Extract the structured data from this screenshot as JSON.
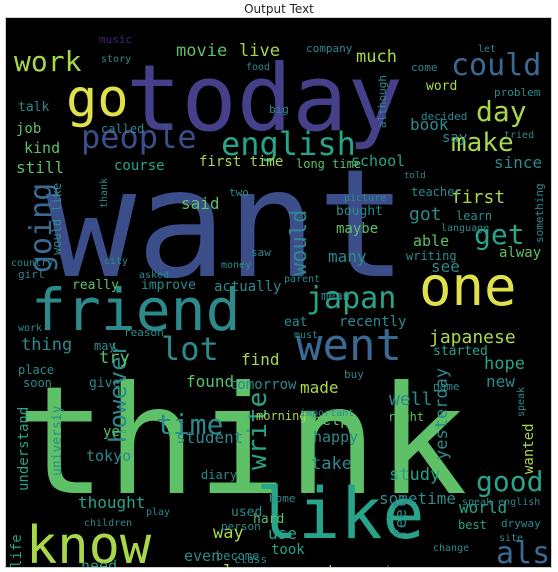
{
  "title": "Output Text",
  "background": "#000000",
  "palette": {
    "navy": "#3b4e8a",
    "indigo": "#46408a",
    "blue": "#3a6a93",
    "teal": "#2d8a8c",
    "sea": "#27a48a",
    "green": "#5ec067",
    "lime": "#a8d84a",
    "yellow": "#dfe14a",
    "purple": "#44207a"
  },
  "words": [
    {
      "text": "want",
      "color": "navy"
    },
    {
      "text": "think",
      "color": "green"
    },
    {
      "text": "today",
      "color": "indigo"
    },
    {
      "text": "friend",
      "color": "teal"
    },
    {
      "text": "know",
      "color": "lime"
    },
    {
      "text": "like",
      "color": "sea"
    },
    {
      "text": "one",
      "color": "yellow"
    },
    {
      "text": "went",
      "color": "blue"
    },
    {
      "text": "go",
      "color": "yellow"
    },
    {
      "text": "people",
      "color": "navy"
    },
    {
      "text": "english",
      "color": "sea"
    },
    {
      "text": "could",
      "color": "blue"
    },
    {
      "text": "day",
      "color": "lime"
    },
    {
      "text": "make",
      "color": "lime"
    },
    {
      "text": "work",
      "color": "lime"
    },
    {
      "text": "going",
      "color": "blue"
    },
    {
      "text": "japan",
      "color": "sea"
    },
    {
      "text": "lot",
      "color": "teal"
    },
    {
      "text": "however",
      "color": "teal"
    },
    {
      "text": "would",
      "color": "teal"
    },
    {
      "text": "get",
      "color": "sea"
    },
    {
      "text": "time",
      "color": "teal"
    },
    {
      "text": "write",
      "color": "sea"
    },
    {
      "text": "good",
      "color": "sea"
    },
    {
      "text": "also",
      "color": "blue"
    },
    {
      "text": "japanese",
      "color": "lime"
    },
    {
      "text": "movie",
      "color": "green"
    },
    {
      "text": "live",
      "color": "lime"
    },
    {
      "text": "much",
      "color": "lime"
    },
    {
      "text": "school",
      "color": "sea"
    },
    {
      "text": "first time",
      "color": "lime"
    },
    {
      "text": "long time",
      "color": "green"
    },
    {
      "text": "still",
      "color": "green"
    },
    {
      "text": "kind",
      "color": "green"
    },
    {
      "text": "job",
      "color": "green"
    },
    {
      "text": "talk",
      "color": "teal"
    },
    {
      "text": "book",
      "color": "teal"
    },
    {
      "text": "say",
      "color": "teal"
    },
    {
      "text": "word",
      "color": "lime"
    },
    {
      "text": "since",
      "color": "teal"
    },
    {
      "text": "said",
      "color": "green"
    },
    {
      "text": "first",
      "color": "lime"
    },
    {
      "text": "got",
      "color": "teal"
    },
    {
      "text": "able",
      "color": "green"
    },
    {
      "text": "alway",
      "color": "green"
    },
    {
      "text": "maybe",
      "color": "green"
    },
    {
      "text": "many",
      "color": "teal"
    },
    {
      "text": "see",
      "color": "teal"
    },
    {
      "text": "really",
      "color": "green"
    },
    {
      "text": "improve",
      "color": "teal"
    },
    {
      "text": "actually",
      "color": "teal"
    },
    {
      "text": "eat",
      "color": "teal"
    },
    {
      "text": "recently",
      "color": "teal"
    },
    {
      "text": "thing",
      "color": "teal"
    },
    {
      "text": "try",
      "color": "green"
    },
    {
      "text": "find",
      "color": "lime"
    },
    {
      "text": "found",
      "color": "green"
    },
    {
      "text": "tomorrow",
      "color": "teal"
    },
    {
      "text": "made",
      "color": "lime"
    },
    {
      "text": "well",
      "color": "teal"
    },
    {
      "text": "hope",
      "color": "sea"
    },
    {
      "text": "new",
      "color": "teal"
    },
    {
      "text": "started",
      "color": "sea"
    },
    {
      "text": "understand",
      "color": "sea"
    },
    {
      "text": "student",
      "color": "teal"
    },
    {
      "text": "year",
      "color": "green"
    },
    {
      "text": "tokyo",
      "color": "teal"
    },
    {
      "text": "happy",
      "color": "teal"
    },
    {
      "text": "help",
      "color": "green"
    },
    {
      "text": "take",
      "color": "teal"
    },
    {
      "text": "study",
      "color": "sea"
    },
    {
      "text": "yesterday",
      "color": "teal"
    },
    {
      "text": "wanted",
      "color": "lime"
    },
    {
      "text": "thought",
      "color": "sea"
    },
    {
      "text": "sometime",
      "color": "teal"
    },
    {
      "text": "way",
      "color": "lime"
    },
    {
      "text": "use",
      "color": "sea"
    },
    {
      "text": "feel",
      "color": "teal"
    },
    {
      "text": "world",
      "color": "sea"
    },
    {
      "text": "need",
      "color": "sea"
    },
    {
      "text": "even",
      "color": "teal"
    },
    {
      "text": "love",
      "color": "lime"
    },
    {
      "text": "read",
      "color": "lime"
    },
    {
      "text": "took",
      "color": "sea"
    },
    {
      "text": "family",
      "color": "sea"
    },
    {
      "text": "house",
      "color": "teal"
    },
    {
      "text": "difficult",
      "color": "lime"
    },
    {
      "text": "better",
      "color": "teal"
    },
    {
      "text": "watch",
      "color": "teal"
    },
    {
      "text": "become",
      "color": "teal"
    },
    {
      "text": "hard",
      "color": "green"
    },
    {
      "text": "used",
      "color": "teal"
    },
    {
      "text": "life",
      "color": "sea"
    },
    {
      "text": "universiy",
      "color": "teal"
    },
    {
      "text": "diary",
      "color": "teal"
    },
    {
      "text": "morning",
      "color": "lime"
    },
    {
      "text": "course",
      "color": "sea"
    },
    {
      "text": "bought",
      "color": "teal"
    },
    {
      "text": "would like",
      "color": "teal"
    },
    {
      "text": "teacher",
      "color": "teal"
    },
    {
      "text": "learn",
      "color": "teal"
    },
    {
      "text": "writing",
      "color": "teal"
    },
    {
      "text": "mean",
      "color": "teal"
    },
    {
      "text": "music",
      "color": "purple"
    },
    {
      "text": "called",
      "color": "teal"
    },
    {
      "text": "company",
      "color": "teal"
    },
    {
      "text": "come",
      "color": "teal"
    },
    {
      "text": "decided",
      "color": "teal"
    },
    {
      "text": "may",
      "color": "teal"
    },
    {
      "text": "reason",
      "color": "teal"
    },
    {
      "text": "give",
      "color": "teal"
    },
    {
      "text": "soon",
      "color": "teal"
    },
    {
      "text": "place",
      "color": "teal"
    },
    {
      "text": "name",
      "color": "teal"
    },
    {
      "text": "buy",
      "color": "teal"
    },
    {
      "text": "must",
      "color": "teal"
    },
    {
      "text": "two",
      "color": "teal"
    },
    {
      "text": "something",
      "color": "teal"
    },
    {
      "text": "problem",
      "color": "teal"
    },
    {
      "text": "although",
      "color": "teal"
    },
    {
      "text": "saw",
      "color": "teal"
    },
    {
      "text": "big",
      "color": "teal"
    },
    {
      "text": "girl",
      "color": "teal"
    },
    {
      "text": "country",
      "color": "teal"
    },
    {
      "text": "city",
      "color": "teal"
    },
    {
      "text": "asked",
      "color": "teal"
    },
    {
      "text": "work",
      "color": "teal"
    },
    {
      "text": "class",
      "color": "teal"
    },
    {
      "text": "best",
      "color": "sea"
    },
    {
      "text": "site",
      "color": "teal"
    },
    {
      "text": "home",
      "color": "teal"
    },
    {
      "text": "person",
      "color": "teal"
    },
    {
      "text": "speak english",
      "color": "teal"
    },
    {
      "text": "dryway",
      "color": "teal"
    },
    {
      "text": "change",
      "color": "teal"
    },
    {
      "text": "children",
      "color": "teal"
    },
    {
      "text": "play",
      "color": "teal"
    },
    {
      "text": "speak",
      "color": "teal"
    },
    {
      "text": "right",
      "color": "green"
    },
    {
      "text": "important",
      "color": "teal"
    },
    {
      "text": "parent",
      "color": "teal"
    },
    {
      "text": "money",
      "color": "teal"
    },
    {
      "text": "told",
      "color": "teal"
    },
    {
      "text": "tried",
      "color": "teal"
    },
    {
      "text": "let",
      "color": "teal"
    },
    {
      "text": "language",
      "color": "teal"
    },
    {
      "text": "picture",
      "color": "teal"
    },
    {
      "text": "food",
      "color": "teal"
    },
    {
      "text": "story",
      "color": "teal"
    },
    {
      "text": "thank",
      "color": "teal"
    }
  ]
}
